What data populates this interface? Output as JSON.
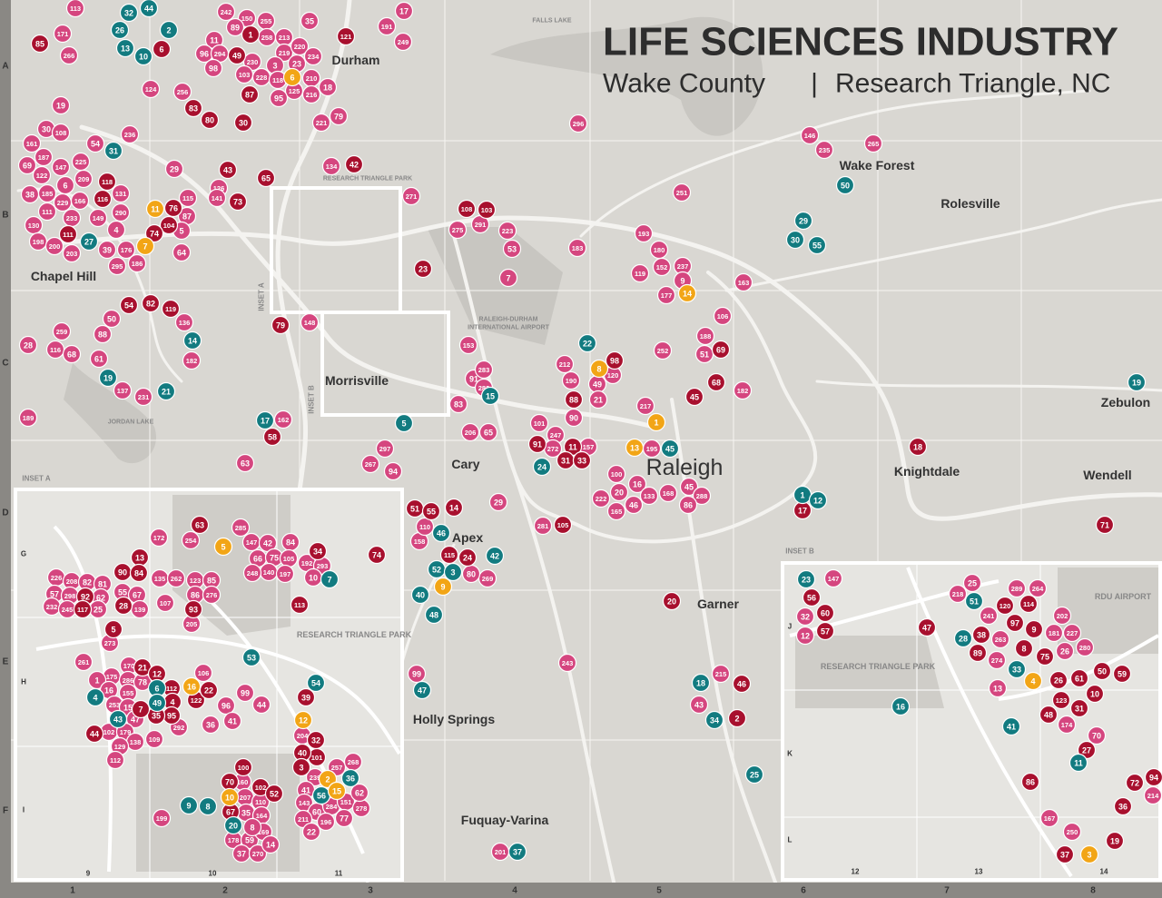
{
  "header": {
    "title": "LIFE SCIENCES INDUSTRY",
    "subtitle_left": "Wake County",
    "subtitle_sep": "|",
    "subtitle_right": "Research Triangle, NC"
  },
  "grid": {
    "rows": [
      "A",
      "B",
      "C",
      "D",
      "E",
      "F"
    ],
    "columns": [
      "1",
      "2",
      "3",
      "4",
      "5",
      "6",
      "7",
      "8"
    ]
  },
  "inset_a": {
    "label": "INSET A",
    "vertical_label": "INSET A",
    "rows": [
      "G",
      "H",
      "I"
    ],
    "columns": [
      "9",
      "10",
      "11"
    ],
    "area": "RESEARCH TRIANGLE PARK"
  },
  "inset_b": {
    "label": "INSET B",
    "vertical_label": "INSET B",
    "rows": [
      "J",
      "K",
      "L"
    ],
    "columns": [
      "12",
      "13",
      "14"
    ],
    "area": "RESEARCH TRIANGLE PARK",
    "airport": "RDU AIRPORT"
  },
  "places": [
    "Durham",
    "Chapel Hill",
    "Morrisville",
    "Cary",
    "Raleigh",
    "Apex",
    "Holly Springs",
    "Fuquay-Varina",
    "Garner",
    "Knightdale",
    "Wendell",
    "Zebulon",
    "Wake Forest",
    "Rolesville"
  ],
  "small_labels": [
    "JORDAN LAKE",
    "FALLS LAKE",
    "RALEIGH-DURHAM",
    "INTERNATIONAL AIRPORT",
    "RESEARCH TRIANGLE PARK"
  ],
  "markers": {
    "main": [
      {
        "color": "#d5467f",
        "labels": [
          "113",
          "171",
          "266",
          "242",
          "150",
          "255",
          "89",
          "35",
          "191",
          "17",
          "249",
          "11",
          "258",
          "213",
          "96",
          "294",
          "230",
          "219",
          "220",
          "234",
          "98",
          "3",
          "23",
          "103",
          "228",
          "118",
          "210",
          "18",
          "124",
          "256",
          "125",
          "216",
          "95",
          "19",
          "79",
          "221",
          "296",
          "30",
          "108",
          "236",
          "54",
          "161",
          "187",
          "69",
          "122",
          "147",
          "225",
          "6",
          "209",
          "29",
          "126",
          "141",
          "134",
          "146",
          "235",
          "265",
          "38",
          "185",
          "229",
          "166",
          "131",
          "290",
          "111",
          "233",
          "149",
          "87",
          "115",
          "130",
          "5",
          "4",
          "198",
          "200",
          "203",
          "176",
          "39",
          "295",
          "186",
          "64",
          "271",
          "275",
          "291",
          "223",
          "53",
          "183",
          "193",
          "180",
          "152",
          "237",
          "119",
          "251",
          "9",
          "177",
          "163",
          "7",
          "259",
          "50",
          "88",
          "136",
          "28",
          "116",
          "68",
          "61",
          "182",
          "137",
          "231",
          "189",
          "148",
          "106",
          "188",
          "252",
          "51",
          "212",
          "190",
          "49",
          "120",
          "91",
          "282",
          "283",
          "153",
          "83",
          "182",
          "21",
          "217",
          "90",
          "101",
          "247",
          "272",
          "157",
          "195",
          "206",
          "65",
          "297",
          "267",
          "94",
          "63",
          "162",
          "100",
          "16",
          "20",
          "133",
          "168",
          "222",
          "46",
          "45",
          "288",
          "165",
          "86",
          "29",
          "281",
          "158",
          "269",
          "80",
          "243",
          "99",
          "215",
          "43",
          "201",
          "110"
        ]
      },
      {
        "color": "#a8102e",
        "labels": [
          "85",
          "6",
          "87",
          "83",
          "80",
          "30",
          "1",
          "49",
          "121",
          "43",
          "42",
          "65",
          "73",
          "118",
          "116",
          "76",
          "104",
          "74",
          "111",
          "54",
          "82",
          "119",
          "79",
          "23",
          "108",
          "103",
          "98",
          "88",
          "68",
          "69",
          "45",
          "18",
          "91",
          "11",
          "31",
          "33",
          "51",
          "55",
          "14",
          "115",
          "24",
          "105",
          "17",
          "71",
          "74",
          "20",
          "46",
          "2",
          "58"
        ]
      },
      {
        "color": "#127b80",
        "labels": [
          "32",
          "44",
          "26",
          "2",
          "13",
          "10",
          "31",
          "27",
          "19",
          "21",
          "14",
          "17",
          "5",
          "15",
          "22",
          "24",
          "45",
          "46",
          "42",
          "52",
          "3",
          "40",
          "48",
          "47",
          "18",
          "34",
          "25",
          "37",
          "50",
          "29",
          "30",
          "55",
          "19",
          "1",
          "12"
        ]
      },
      {
        "color": "#f2a516",
        "labels": [
          "6",
          "11",
          "7",
          "14",
          "8",
          "1",
          "13",
          "9"
        ]
      }
    ],
    "inset_a": [
      {
        "color": "#d5467f",
        "labels": [
          "172",
          "254",
          "285",
          "147",
          "42",
          "84",
          "66",
          "75",
          "105",
          "192",
          "293",
          "226",
          "208",
          "82",
          "81",
          "135",
          "262",
          "123",
          "85",
          "140",
          "197",
          "248",
          "10",
          "55",
          "57",
          "298",
          "62",
          "67",
          "86",
          "276",
          "232",
          "245",
          "25",
          "139",
          "107",
          "205",
          "261",
          "273",
          "170",
          "175",
          "286",
          "78",
          "1",
          "16",
          "155",
          "253",
          "15",
          "47",
          "102",
          "179",
          "138",
          "129",
          "112",
          "199",
          "106",
          "96",
          "36",
          "41",
          "292",
          "109",
          "99",
          "44",
          "204",
          "257",
          "268",
          "239",
          "41",
          "143",
          "60",
          "284",
          "151",
          "278",
          "62",
          "211",
          "196",
          "22",
          "77",
          "160",
          "207",
          "110",
          "35",
          "164",
          "178",
          "59",
          "169",
          "37",
          "270",
          "14",
          "8"
        ]
      },
      {
        "color": "#a8102e",
        "labels": [
          "63",
          "13",
          "90",
          "84",
          "92",
          "117",
          "28",
          "93",
          "113",
          "5",
          "21",
          "12",
          "122",
          "22",
          "112",
          "4",
          "95",
          "35",
          "7",
          "44",
          "101",
          "32",
          "40",
          "3",
          "100",
          "70",
          "102",
          "52",
          "67",
          "39",
          "34"
        ]
      },
      {
        "color": "#127b80",
        "labels": [
          "7",
          "4",
          "6",
          "49",
          "43",
          "54",
          "9",
          "8",
          "36",
          "56",
          "20",
          "53"
        ]
      },
      {
        "color": "#f2a516",
        "labels": [
          "5",
          "16",
          "12",
          "2",
          "15",
          "10"
        ]
      }
    ],
    "inset_b": [
      {
        "color": "#d5467f",
        "labels": [
          "147",
          "25",
          "218",
          "289",
          "264",
          "241",
          "263",
          "202",
          "181",
          "227",
          "274",
          "26",
          "280",
          "13",
          "174",
          "70",
          "167",
          "250",
          "214",
          "32",
          "12"
        ]
      },
      {
        "color": "#a8102e",
        "labels": [
          "56",
          "60",
          "57",
          "47",
          "38",
          "89",
          "120",
          "114",
          "97",
          "9",
          "8",
          "75",
          "26",
          "61",
          "50",
          "59",
          "123",
          "10",
          "31",
          "48",
          "27",
          "86",
          "72",
          "94",
          "36",
          "19",
          "37"
        ]
      },
      {
        "color": "#127b80",
        "labels": [
          "23",
          "51",
          "28",
          "33",
          "16",
          "41",
          "11"
        ]
      },
      {
        "color": "#f2a516",
        "labels": [
          "4",
          "3"
        ]
      }
    ]
  }
}
